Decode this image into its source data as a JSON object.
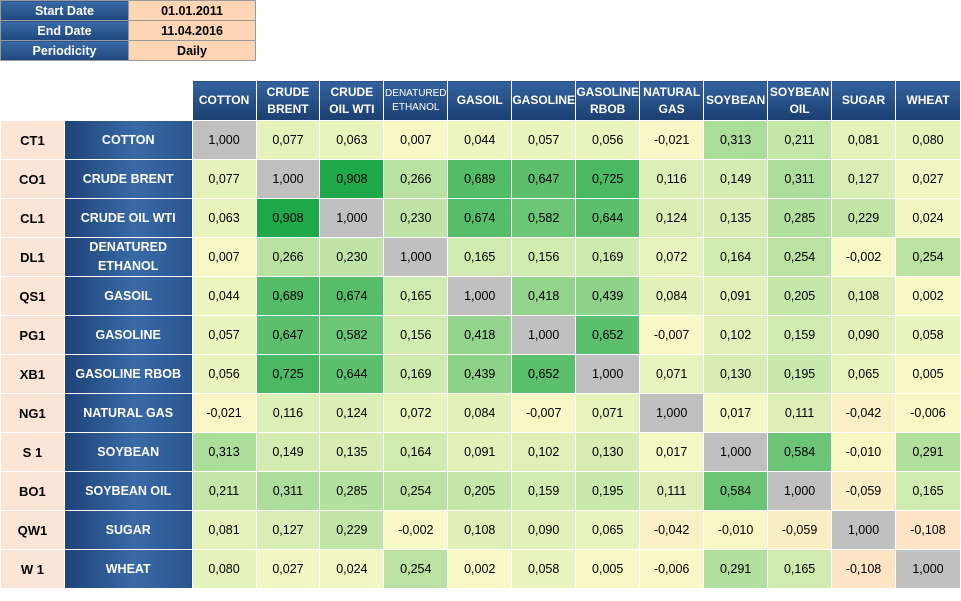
{
  "parameters": [
    {
      "label": "Start Date",
      "value": "01.01.2011"
    },
    {
      "label": "End Date",
      "value": "11.04.2016"
    },
    {
      "label": "Periodicity",
      "value": "Daily"
    }
  ],
  "columns": [
    {
      "line1": "COTTON",
      "line2": ""
    },
    {
      "line1": "CRUDE",
      "line2": "BRENT"
    },
    {
      "line1": "CRUDE",
      "line2": "OIL WTI"
    },
    {
      "line1": "DENATURED",
      "line2": "ETHANOL"
    },
    {
      "line1": "GASOIL",
      "line2": ""
    },
    {
      "line1": "GASOLINE",
      "line2": ""
    },
    {
      "line1": "GASOLINE",
      "line2": "RBOB"
    },
    {
      "line1": "NATURAL",
      "line2": "GAS"
    },
    {
      "line1": "SOYBEAN",
      "line2": ""
    },
    {
      "line1": "SOYBEAN",
      "line2": "OIL"
    },
    {
      "line1": "SUGAR",
      "line2": ""
    },
    {
      "line1": "WHEAT",
      "line2": ""
    }
  ],
  "rows": [
    {
      "code": "CT1",
      "name1": "COTTON",
      "name2": "",
      "values": [
        "1,000",
        "0,077",
        "0,063",
        "0,007",
        "0,044",
        "0,057",
        "0,056",
        "-0,021",
        "0,313",
        "0,211",
        "0,081",
        "0,080"
      ]
    },
    {
      "code": "CO1",
      "name1": "CRUDE BRENT",
      "name2": "",
      "values": [
        "0,077",
        "1,000",
        "0,908",
        "0,266",
        "0,689",
        "0,647",
        "0,725",
        "0,116",
        "0,149",
        "0,311",
        "0,127",
        "0,027"
      ]
    },
    {
      "code": "CL1",
      "name1": "CRUDE OIL WTI",
      "name2": "",
      "values": [
        "0,063",
        "0,908",
        "1,000",
        "0,230",
        "0,674",
        "0,582",
        "0,644",
        "0,124",
        "0,135",
        "0,285",
        "0,229",
        "0,024"
      ]
    },
    {
      "code": "DL1",
      "name1": "DENATURED",
      "name2": "ETHANOL",
      "values": [
        "0,007",
        "0,266",
        "0,230",
        "1,000",
        "0,165",
        "0,156",
        "0,169",
        "0,072",
        "0,164",
        "0,254",
        "-0,002",
        "0,254"
      ]
    },
    {
      "code": "QS1",
      "name1": "GASOIL",
      "name2": "",
      "values": [
        "0,044",
        "0,689",
        "0,674",
        "0,165",
        "1,000",
        "0,418",
        "0,439",
        "0,084",
        "0,091",
        "0,205",
        "0,108",
        "0,002"
      ]
    },
    {
      "code": "PG1",
      "name1": "GASOLINE",
      "name2": "",
      "values": [
        "0,057",
        "0,647",
        "0,582",
        "0,156",
        "0,418",
        "1,000",
        "0,652",
        "-0,007",
        "0,102",
        "0,159",
        "0,090",
        "0,058"
      ]
    },
    {
      "code": "XB1",
      "name1": "GASOLINE RBOB",
      "name2": "",
      "values": [
        "0,056",
        "0,725",
        "0,644",
        "0,169",
        "0,439",
        "0,652",
        "1,000",
        "0,071",
        "0,130",
        "0,195",
        "0,065",
        "0,005"
      ]
    },
    {
      "code": "NG1",
      "name1": "NATURAL GAS",
      "name2": "",
      "values": [
        "-0,021",
        "0,116",
        "0,124",
        "0,072",
        "0,084",
        "-0,007",
        "0,071",
        "1,000",
        "0,017",
        "0,111",
        "-0,042",
        "-0,006"
      ]
    },
    {
      "code": "S 1",
      "name1": "SOYBEAN",
      "name2": "",
      "values": [
        "0,313",
        "0,149",
        "0,135",
        "0,164",
        "0,091",
        "0,102",
        "0,130",
        "0,017",
        "1,000",
        "0,584",
        "-0,010",
        "0,291"
      ]
    },
    {
      "code": "BO1",
      "name1": "SOYBEAN OIL",
      "name2": "",
      "values": [
        "0,211",
        "0,311",
        "0,285",
        "0,254",
        "0,205",
        "0,159",
        "0,195",
        "0,111",
        "0,584",
        "1,000",
        "-0,059",
        "0,165"
      ]
    },
    {
      "code": "QW1",
      "name1": "SUGAR",
      "name2": "",
      "values": [
        "0,081",
        "0,127",
        "0,229",
        "-0,002",
        "0,108",
        "0,090",
        "0,065",
        "-0,042",
        "-0,010",
        "-0,059",
        "1,000",
        "-0,108"
      ]
    },
    {
      "code": "W 1",
      "name1": "WHEAT",
      "name2": "",
      "values": [
        "0,080",
        "0,027",
        "0,024",
        "0,254",
        "0,002",
        "0,058",
        "0,005",
        "-0,006",
        "0,291",
        "0,165",
        "-0,108",
        "1,000"
      ]
    }
  ],
  "colors": {
    "header_blue": "#1f477d",
    "param_value_bg": "#fcd5b4",
    "code_bg": "#fce4d6",
    "diagonal_gray": "#c0c0c0",
    "scale_low": "#fce4c4",
    "scale_mid": "#f7f9c6",
    "scale_high": "#1fa84a"
  }
}
